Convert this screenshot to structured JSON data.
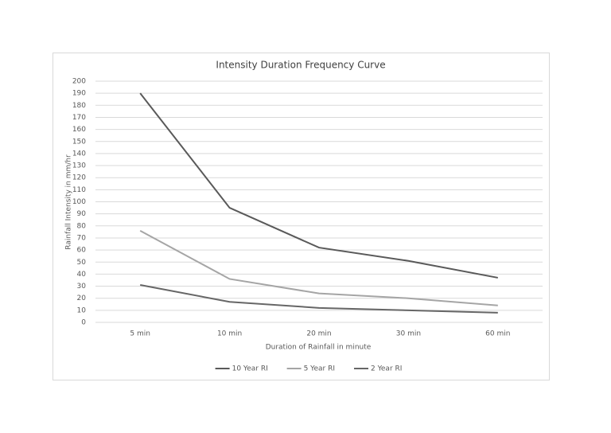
{
  "chart_data": {
    "type": "line",
    "title": "Intensity Duration Frequency Curve",
    "x_label": "Duration of Rainfall in minute",
    "y_label": "Rainfall Intensity in mm/hr",
    "categories": [
      "5 min",
      "10 min",
      "20 min",
      "30 min",
      "60 min"
    ],
    "series": [
      {
        "name": "10 Year RI",
        "color": "#595959",
        "values": [
          190,
          95,
          62,
          51,
          37
        ]
      },
      {
        "name": "5 Year RI",
        "color": "#a5a5a5",
        "values": [
          76,
          36,
          24,
          20,
          14
        ]
      },
      {
        "name": "2 Year RI",
        "color": "#666666",
        "values": [
          31,
          17,
          12,
          10,
          8
        ]
      }
    ],
    "ylim": [
      0,
      200
    ],
    "yticks": [
      0,
      10,
      20,
      30,
      40,
      50,
      60,
      70,
      80,
      90,
      100,
      110,
      120,
      130,
      140,
      150,
      160,
      170,
      180,
      190,
      200
    ],
    "grid": true,
    "legend": "bottom"
  }
}
